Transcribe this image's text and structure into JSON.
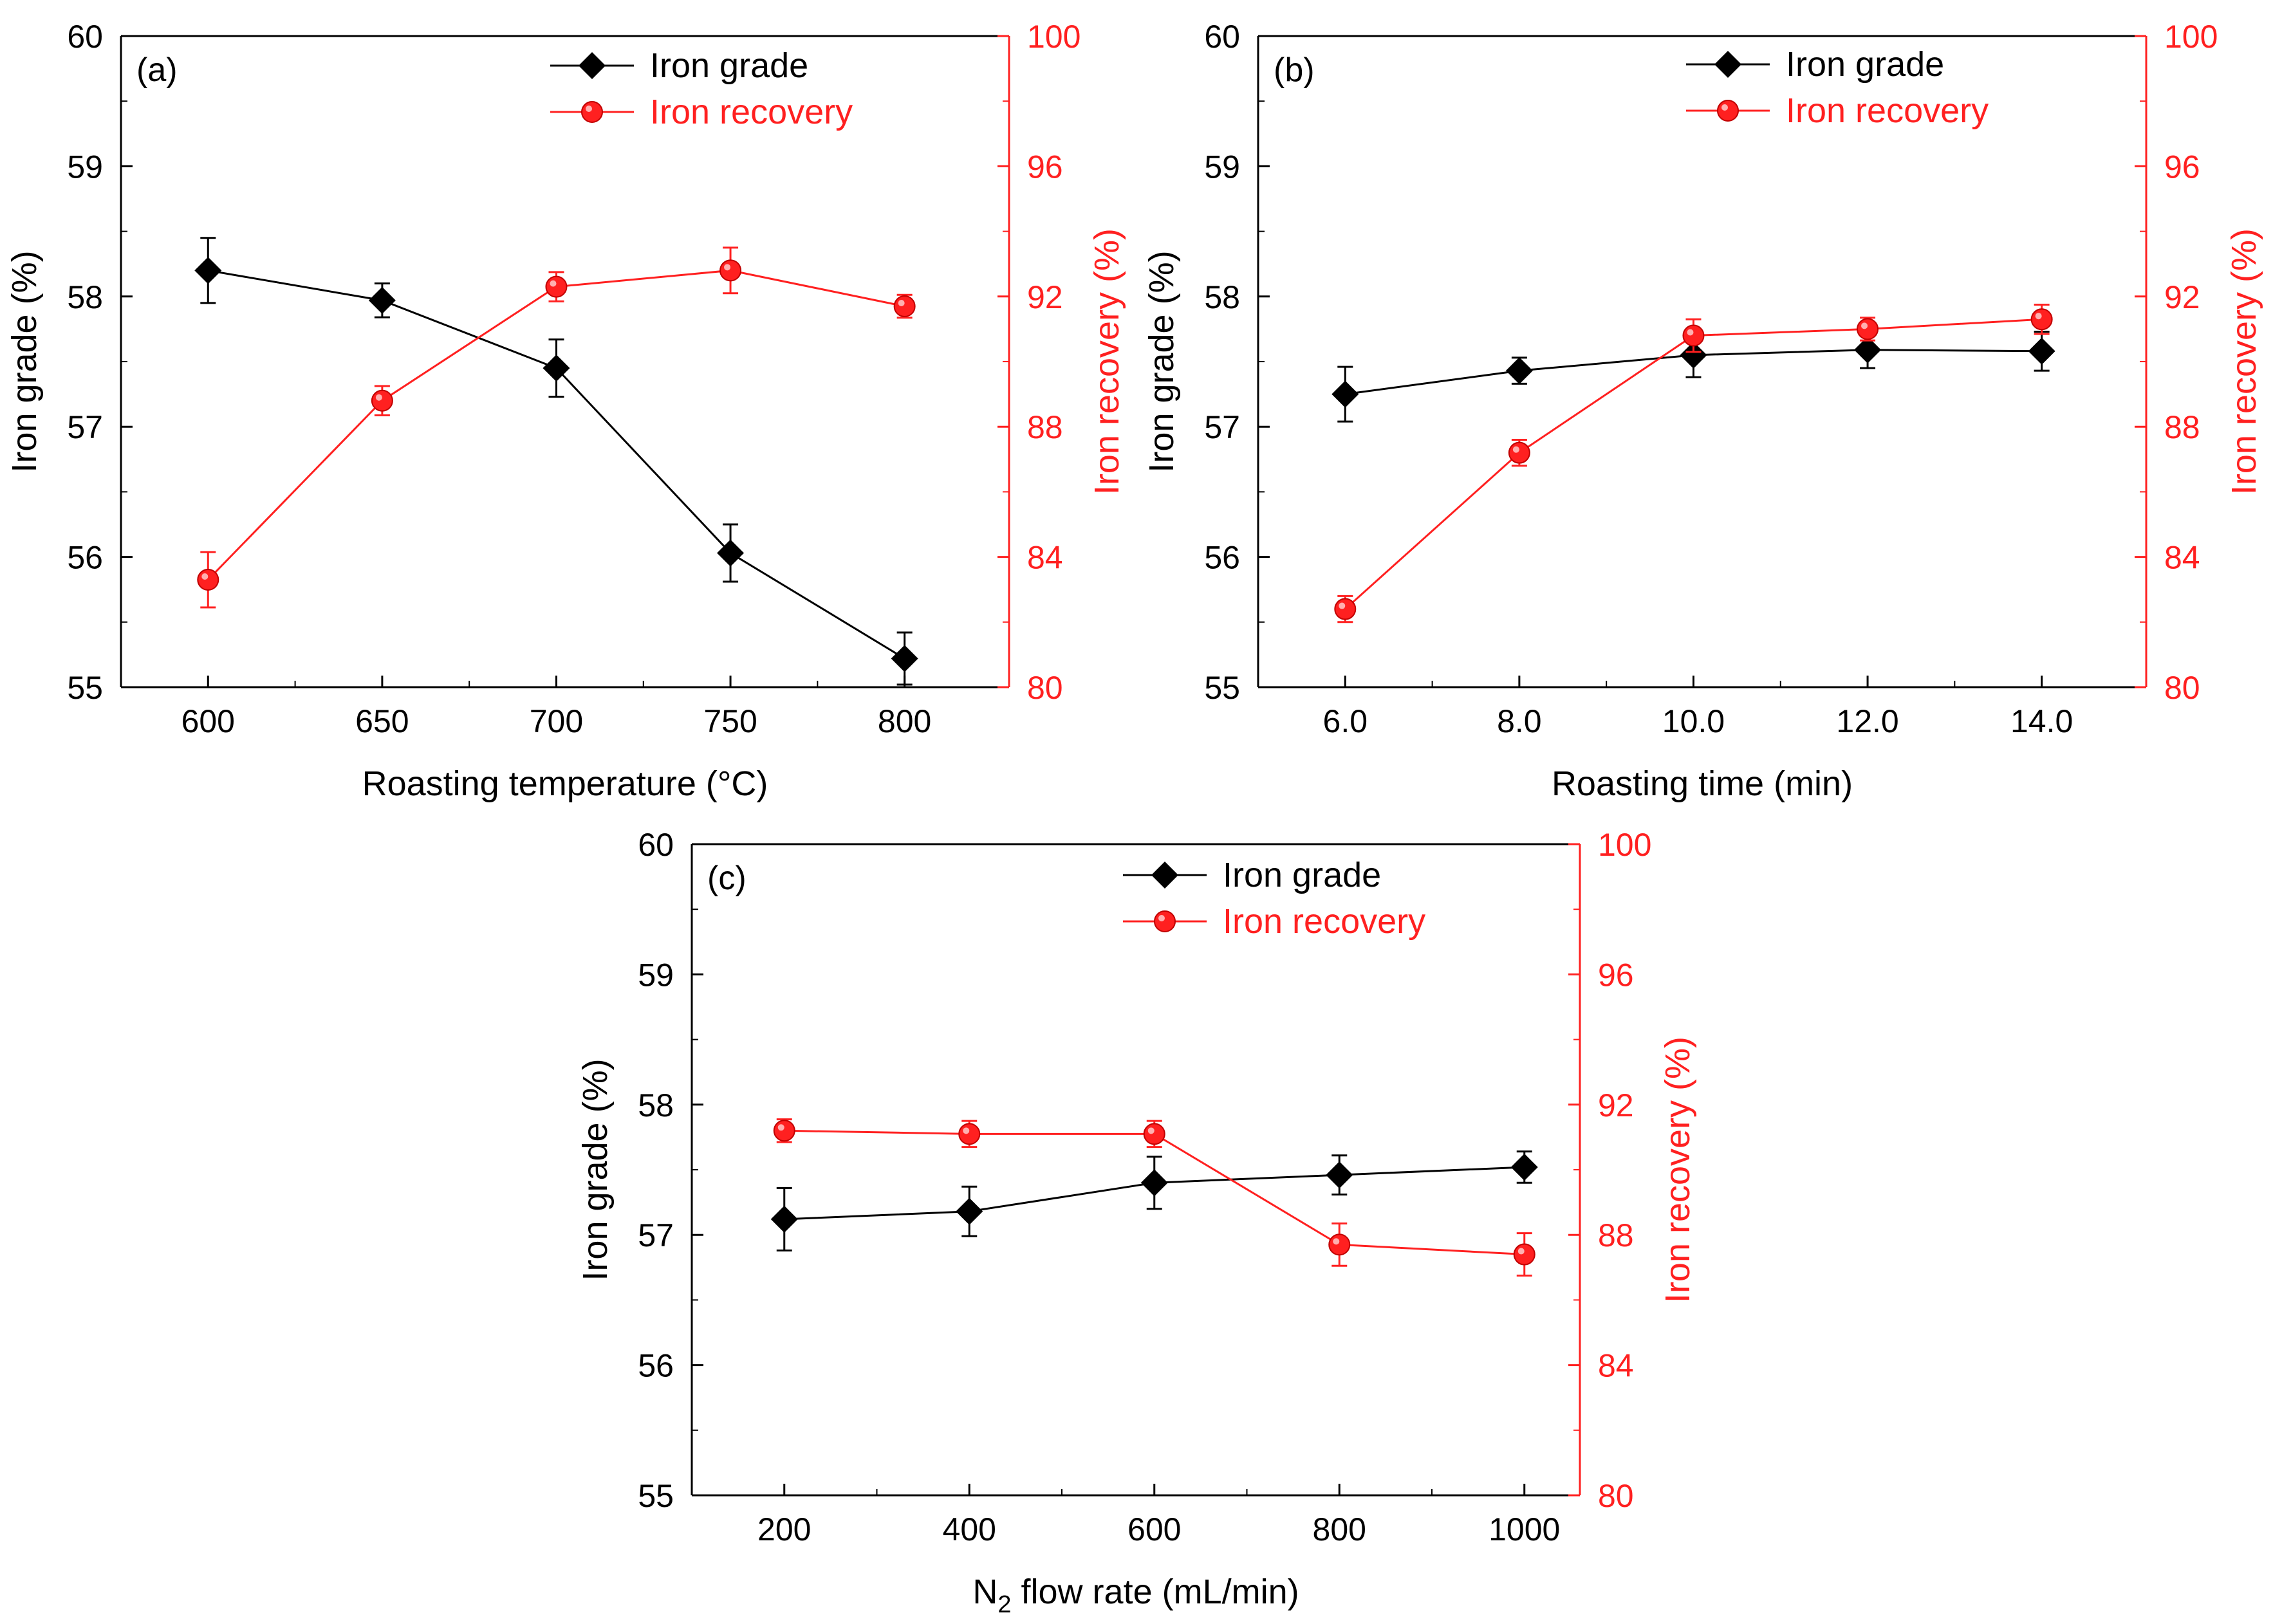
{
  "chart_data": [
    {
      "panel_label": "(a)",
      "type": "line",
      "xlabel": "Roasting temperature (°C)",
      "x": [
        600,
        650,
        700,
        750,
        800
      ],
      "x_tick_labels": [
        "600",
        "650",
        "700",
        "750",
        "800"
      ],
      "xlim": [
        575,
        830
      ],
      "ylabel_left": "Iron grade (%)",
      "ylim_left": [
        55,
        60
      ],
      "yticks_left": [
        "55",
        "56",
        "57",
        "58",
        "59",
        "60"
      ],
      "ylabel_right": "Iron recovery (%)",
      "ylim_right": [
        80,
        100
      ],
      "yticks_right": [
        "80",
        "84",
        "88",
        "92",
        "96",
        "100"
      ],
      "legend_position": "top-right",
      "series": [
        {
          "name": "Iron grade",
          "axis": "left",
          "color": "#000000",
          "marker": "diamond",
          "values": [
            58.2,
            57.97,
            57.45,
            56.03,
            55.22
          ],
          "errors": [
            0.25,
            0.13,
            0.22,
            0.22,
            0.2
          ]
        },
        {
          "name": "Iron recovery",
          "axis": "right",
          "color": "#ff2020",
          "marker": "circle",
          "values": [
            83.3,
            88.8,
            92.3,
            92.8,
            91.7
          ],
          "errors": [
            0.85,
            0.45,
            0.45,
            0.7,
            0.35
          ]
        }
      ]
    },
    {
      "panel_label": "(b)",
      "type": "line",
      "xlabel": "Roasting time (min)",
      "x": [
        6,
        8,
        10,
        12,
        14
      ],
      "x_tick_labels": [
        "6.0",
        "8.0",
        "10.0",
        "12.0",
        "14.0"
      ],
      "xlim": [
        5,
        15.2
      ],
      "ylabel_left": "Iron grade (%)",
      "ylim_left": [
        55,
        60
      ],
      "yticks_left": [
        "55",
        "56",
        "57",
        "58",
        "59",
        "60"
      ],
      "ylabel_right": "Iron recovery (%)",
      "ylim_right": [
        80,
        100
      ],
      "yticks_right": [
        "80",
        "84",
        "88",
        "92",
        "96",
        "100"
      ],
      "legend_position": "top-right",
      "series": [
        {
          "name": "Iron grade",
          "axis": "left",
          "color": "#000000",
          "marker": "diamond",
          "values": [
            57.25,
            57.43,
            57.55,
            57.59,
            57.58
          ],
          "errors": [
            0.21,
            0.1,
            0.17,
            0.14,
            0.15
          ]
        },
        {
          "name": "Iron recovery",
          "axis": "right",
          "color": "#ff2020",
          "marker": "circle",
          "values": [
            82.4,
            87.2,
            90.8,
            91.0,
            91.3
          ],
          "errors": [
            0.4,
            0.4,
            0.5,
            0.35,
            0.45
          ]
        }
      ]
    },
    {
      "panel_label": "(c)",
      "type": "line",
      "xlabel_main": "N",
      "xlabel_sub": "2",
      "xlabel_rest": " flow rate (mL/min)",
      "x": [
        200,
        400,
        600,
        800,
        1000
      ],
      "x_tick_labels": [
        "200",
        "400",
        "600",
        "800",
        "1000"
      ],
      "xlim": [
        100,
        1060
      ],
      "ylabel_left": "Iron grade (%)",
      "ylim_left": [
        55,
        60
      ],
      "yticks_left": [
        "55",
        "56",
        "57",
        "58",
        "59",
        "60"
      ],
      "ylabel_right": "Iron recovery (%)",
      "ylim_right": [
        80,
        100
      ],
      "yticks_right": [
        "80",
        "84",
        "88",
        "92",
        "96",
        "100"
      ],
      "legend_position": "top-right",
      "series": [
        {
          "name": "Iron grade",
          "axis": "left",
          "color": "#000000",
          "marker": "diamond",
          "values": [
            57.12,
            57.18,
            57.4,
            57.46,
            57.52
          ],
          "errors": [
            0.24,
            0.19,
            0.2,
            0.15,
            0.12
          ]
        },
        {
          "name": "Iron recovery",
          "axis": "right",
          "color": "#ff2020",
          "marker": "circle",
          "values": [
            91.2,
            91.1,
            91.1,
            87.7,
            87.4
          ],
          "errors": [
            0.35,
            0.4,
            0.4,
            0.65,
            0.65
          ]
        }
      ]
    }
  ]
}
